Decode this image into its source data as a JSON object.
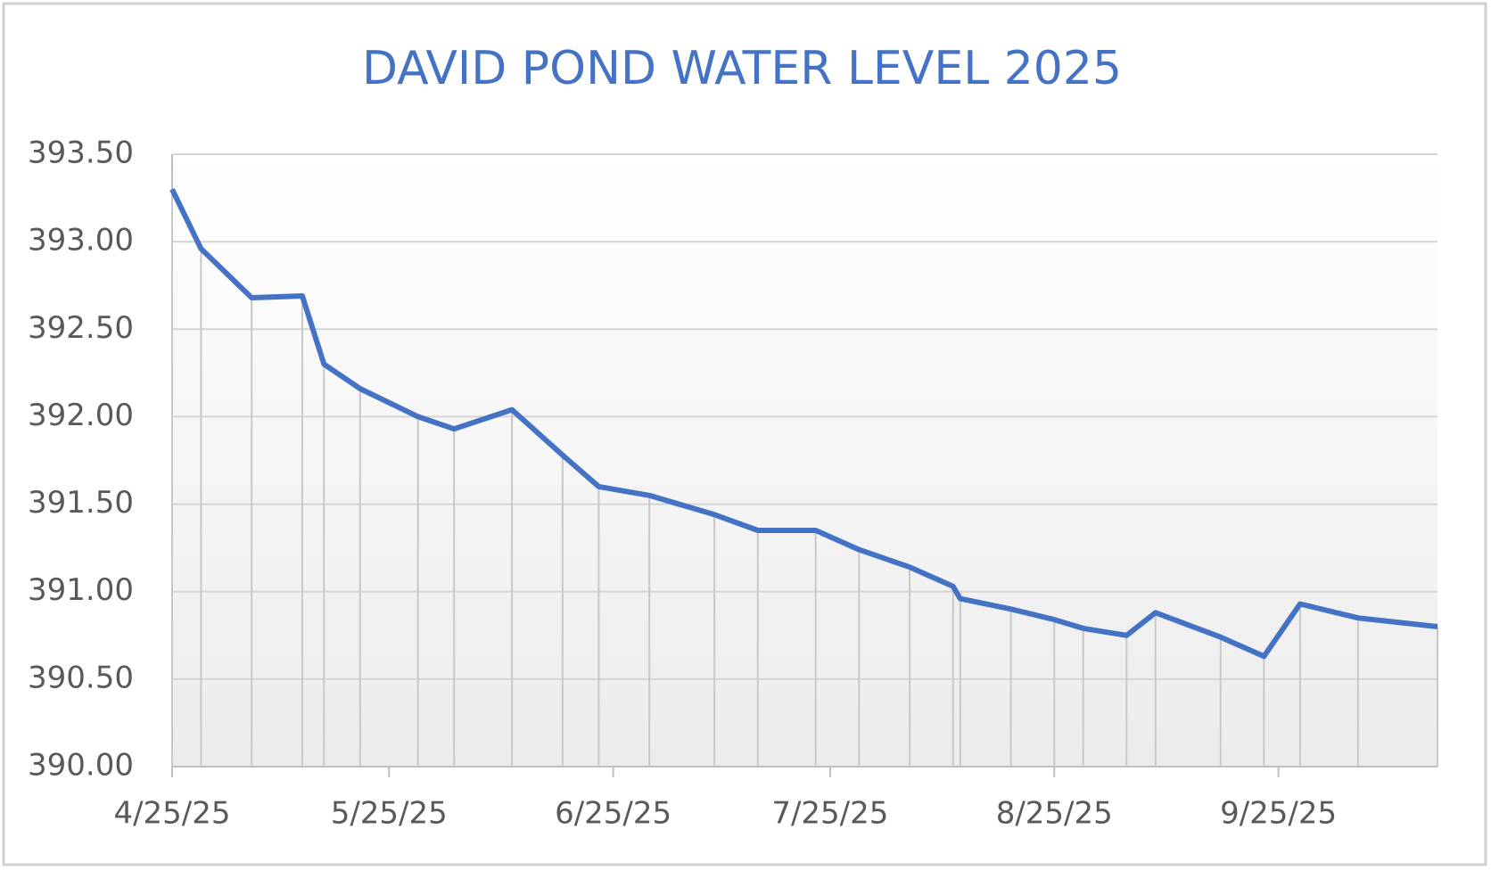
{
  "chart_data": {
    "type": "line",
    "title": "DAVID POND WATER LEVEL 2025",
    "x": [
      "2025-04-25",
      "2025-04-29",
      "2025-05-06",
      "2025-05-13",
      "2025-05-16",
      "2025-05-21",
      "2025-05-29",
      "2025-06-03",
      "2025-06-11",
      "2025-06-18",
      "2025-06-23",
      "2025-06-30",
      "2025-07-09",
      "2025-07-15",
      "2025-07-23",
      "2025-07-29",
      "2025-08-05",
      "2025-08-11",
      "2025-08-12",
      "2025-08-19",
      "2025-08-25",
      "2025-08-29",
      "2025-09-04",
      "2025-09-08",
      "2025-09-17",
      "2025-09-23",
      "2025-09-28",
      "2025-10-06",
      "2025-10-17"
    ],
    "series": [
      {
        "name": "Water level",
        "color": "#4472c4",
        "values": [
          393.3,
          392.96,
          392.68,
          392.69,
          392.3,
          392.16,
          392.0,
          391.93,
          392.04,
          391.78,
          391.6,
          391.55,
          391.44,
          391.35,
          391.35,
          391.24,
          391.14,
          391.03,
          390.96,
          390.9,
          390.84,
          390.79,
          390.75,
          390.88,
          390.74,
          390.63,
          390.93,
          390.85,
          390.8
        ]
      }
    ],
    "xlim": [
      "2025-04-25",
      "2025-10-17"
    ],
    "xticks": [
      {
        "value": "2025-04-25",
        "label": "4/25/25"
      },
      {
        "value": "2025-05-25",
        "label": "5/25/25"
      },
      {
        "value": "2025-06-25",
        "label": "6/25/25"
      },
      {
        "value": "2025-07-25",
        "label": "7/25/25"
      },
      {
        "value": "2025-08-25",
        "label": "8/25/25"
      },
      {
        "value": "2025-09-25",
        "label": "9/25/25"
      }
    ],
    "ylim": [
      390,
      393.5
    ],
    "yticks": [
      {
        "value": 390,
        "label": "390.00"
      },
      {
        "value": 390.5,
        "label": "390.50"
      },
      {
        "value": 391,
        "label": "391.00"
      },
      {
        "value": 391.5,
        "label": "391.50"
      },
      {
        "value": 392,
        "label": "392.00"
      },
      {
        "value": 392.5,
        "label": "392.50"
      },
      {
        "value": 393,
        "label": "393.00"
      },
      {
        "value": 393.5,
        "label": "393.50"
      }
    ],
    "grid": true,
    "drop_lines": true
  }
}
